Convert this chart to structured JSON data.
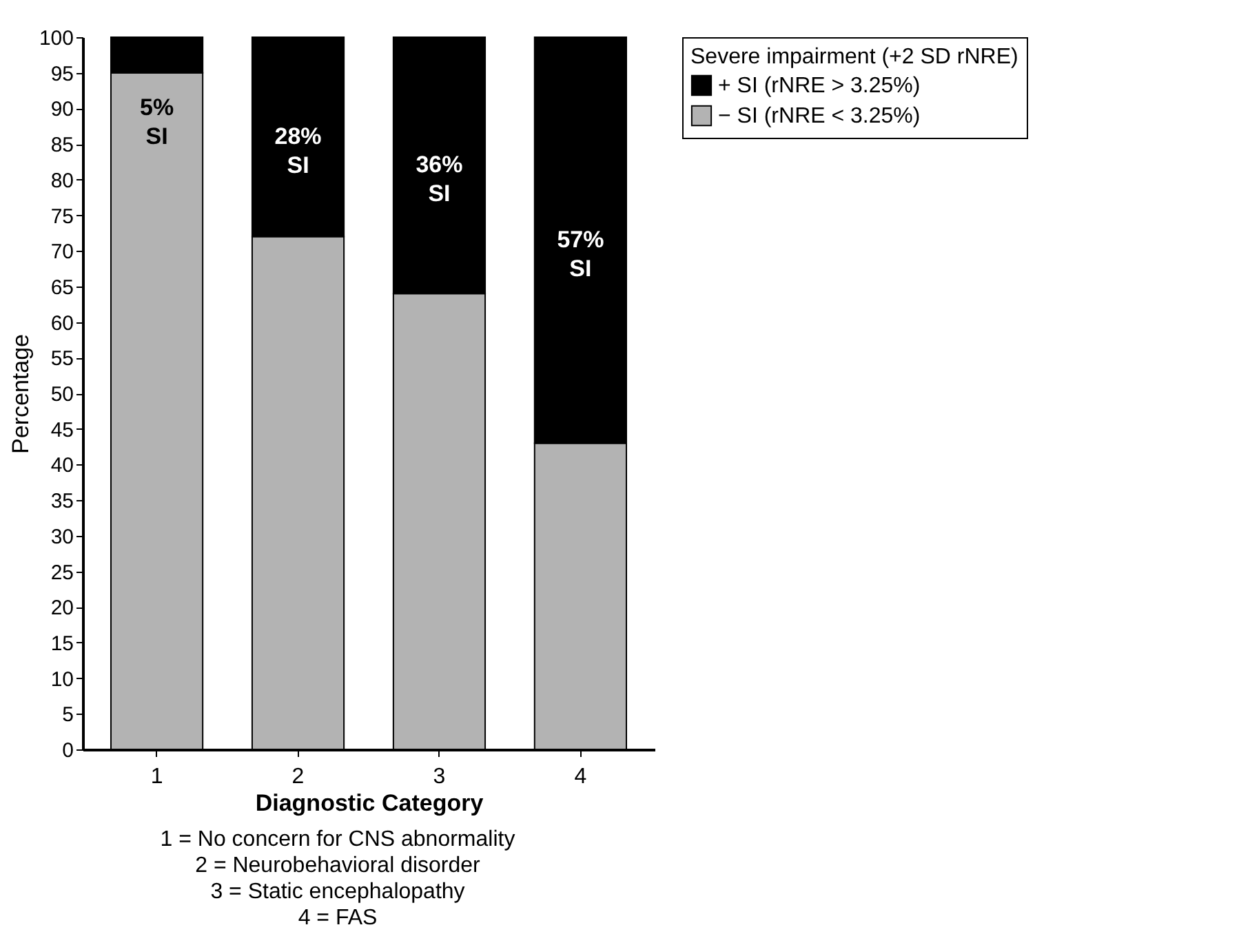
{
  "chart_data": {
    "type": "bar",
    "stacked": true,
    "xlabel": "Diagnostic Category",
    "ylabel": "Percentage",
    "legend_title": "Severe impairment (+2 SD rNRE)",
    "legend": "right",
    "categories": [
      "1",
      "2",
      "3",
      "4"
    ],
    "series": [
      {
        "name": "− SI (rNRE < 3.25%)",
        "color": "#b3b3b3",
        "values": [
          95,
          72,
          64,
          43
        ]
      },
      {
        "name": "+ SI (rNRE > 3.25%)",
        "color": "#000000",
        "values": [
          5,
          28,
          36,
          57
        ],
        "value_labels": [
          "5% SI",
          "28% SI",
          "36% SI",
          "57% SI"
        ]
      }
    ],
    "ylim": [
      0,
      100
    ],
    "yticks": [
      0,
      5,
      10,
      15,
      20,
      25,
      30,
      35,
      40,
      45,
      50,
      55,
      60,
      65,
      70,
      75,
      80,
      85,
      90,
      95,
      100
    ],
    "grid": false,
    "annotations": [
      "1 = No concern for CNS abnormality",
      "2 = Neurobehavioral disorder",
      "3 = Static encephalopathy",
      "4 = FAS"
    ]
  }
}
